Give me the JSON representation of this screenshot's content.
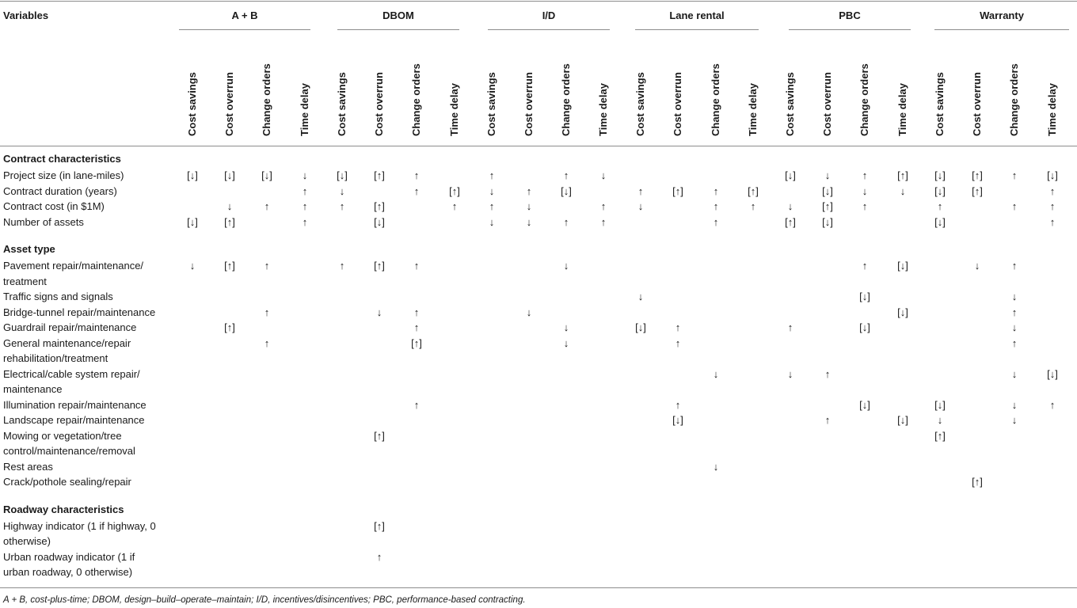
{
  "table": {
    "variables_header": "Variables",
    "groups": [
      "A + B",
      "DBOM",
      "I/D",
      "Lane rental",
      "PBC",
      "Warranty"
    ],
    "subheaders": [
      "Cost savings",
      "Cost overrun",
      "Change orders",
      "Time delay"
    ],
    "sections": [
      {
        "title": "Contract characteristics",
        "rows": [
          {
            "label": [
              "Project size (in lane-miles)"
            ],
            "cells": [
              "[↓]",
              "[↓]",
              "[↓]",
              "↓",
              "[↓]",
              "[↑]",
              "↑",
              "",
              "↑",
              "",
              "↑",
              "↓",
              "",
              "",
              "",
              "",
              "[↓]",
              "↓",
              "↑",
              "[↑]",
              "[↓]",
              "[↑]",
              "↑",
              "[↓]"
            ]
          },
          {
            "label": [
              "Contract duration (years)"
            ],
            "cells": [
              "",
              "",
              "",
              "↑",
              "↓",
              "",
              "↑",
              "[↑]",
              "↓",
              "↑",
              "[↓]",
              "",
              "↑",
              "[↑]",
              "↑",
              "[↑]",
              "",
              "[↓]",
              "↓",
              "↓",
              "[↓]",
              "[↑]",
              "",
              "↑"
            ]
          },
          {
            "label": [
              "Contract cost (in $1M)"
            ],
            "cells": [
              "",
              "↓",
              "↑",
              "↑",
              "↑",
              "[↑]",
              "",
              "↑",
              "↑",
              "↓",
              "",
              "↑",
              "↓",
              "",
              "↑",
              "↑",
              "↓",
              "[↑]",
              "↑",
              "",
              "↑",
              "",
              "↑",
              "↑"
            ]
          },
          {
            "label": [
              "Number of assets"
            ],
            "cells": [
              "[↓]",
              "[↑]",
              "",
              "↑",
              "",
              "[↓]",
              "",
              "",
              "↓",
              "↓",
              "↑",
              "↑",
              "",
              "",
              "↑",
              "",
              "[↑]",
              "[↓]",
              "",
              "",
              "[↓]",
              "",
              "",
              "↑"
            ]
          }
        ]
      },
      {
        "title": "Asset type",
        "rows": [
          {
            "label": [
              "Pavement repair/maintenance/",
              "treatment"
            ],
            "cells": [
              "↓",
              "[↑]",
              "↑",
              "",
              "↑",
              "[↑]",
              "↑",
              "",
              "",
              "",
              "↓",
              "",
              "",
              "",
              "",
              "",
              "",
              "",
              "↑",
              "[↓]",
              "",
              "↓",
              "↑",
              ""
            ]
          },
          {
            "label": [
              "Traffic signs and signals"
            ],
            "cells": [
              "",
              "",
              "",
              "",
              "",
              "",
              "",
              "",
              "",
              "",
              "",
              "",
              "↓",
              "",
              "",
              "",
              "",
              "",
              "[↓]",
              "",
              "",
              "",
              "↓",
              ""
            ]
          },
          {
            "label": [
              "Bridge-tunnel repair/maintenance"
            ],
            "cells": [
              "",
              "",
              "↑",
              "",
              "",
              "↓",
              "↑",
              "",
              "",
              "↓",
              "",
              "",
              "",
              "",
              "",
              "",
              "",
              "",
              "",
              "[↓]",
              "",
              "",
              "↑",
              ""
            ]
          },
          {
            "label": [
              "Guardrail repair/maintenance"
            ],
            "cells": [
              "",
              "[↑]",
              "",
              "",
              "",
              "",
              "↑",
              "",
              "",
              "",
              "↓",
              "",
              "[↓]",
              "↑",
              "",
              "",
              "↑",
              "",
              "[↓]",
              "",
              "",
              "",
              "↓",
              ""
            ]
          },
          {
            "label": [
              "General maintenance/repair",
              "rehabilitation/treatment"
            ],
            "cells": [
              "",
              "",
              "↑",
              "",
              "",
              "",
              "[↑]",
              "",
              "",
              "",
              "↓",
              "",
              "",
              "↑",
              "",
              "",
              "",
              "",
              "",
              "",
              "",
              "",
              "↑",
              ""
            ]
          },
          {
            "label": [
              "Electrical/cable system repair/",
              "maintenance"
            ],
            "cells": [
              "",
              "",
              "",
              "",
              "",
              "",
              "",
              "",
              "",
              "",
              "",
              "",
              "",
              "",
              "↓",
              "",
              "↓",
              "↑",
              "",
              "",
              "",
              "",
              "↓",
              "[↓]"
            ]
          },
          {
            "label": [
              "Illumination repair/maintenance"
            ],
            "cells": [
              "",
              "",
              "",
              "",
              "",
              "",
              "↑",
              "",
              "",
              "",
              "",
              "",
              "",
              "↑",
              "",
              "",
              "",
              "",
              "[↓]",
              "",
              "[↓]",
              "",
              "↓",
              "↑"
            ]
          },
          {
            "label": [
              "Landscape repair/maintenance"
            ],
            "cells": [
              "",
              "",
              "",
              "",
              "",
              "",
              "",
              "",
              "",
              "",
              "",
              "",
              "",
              "[↓]",
              "",
              "",
              "",
              "↑",
              "",
              "[↓]",
              "↓",
              "",
              "↓",
              ""
            ]
          },
          {
            "label": [
              "Mowing or vegetation/tree",
              "control/maintenance/removal"
            ],
            "cells": [
              "",
              "",
              "",
              "",
              "",
              "[↑]",
              "",
              "",
              "",
              "",
              "",
              "",
              "",
              "",
              "",
              "",
              "",
              "",
              "",
              "",
              "[↑]",
              "",
              "",
              ""
            ]
          },
          {
            "label": [
              "Rest areas"
            ],
            "cells": [
              "",
              "",
              "",
              "",
              "",
              "",
              "",
              "",
              "",
              "",
              "",
              "",
              "",
              "",
              "↓",
              "",
              "",
              "",
              "",
              "",
              "",
              "",
              "",
              ""
            ]
          },
          {
            "label": [
              "Crack/pothole sealing/repair"
            ],
            "cells": [
              "",
              "",
              "",
              "",
              "",
              "",
              "",
              "",
              "",
              "",
              "",
              "",
              "",
              "",
              "",
              "",
              "",
              "",
              "",
              "",
              "",
              "[↑]",
              "",
              ""
            ]
          }
        ]
      },
      {
        "title": "Roadway characteristics",
        "rows": [
          {
            "label": [
              "Highway indicator (1 if highway, 0",
              "otherwise)"
            ],
            "cells": [
              "",
              "",
              "",
              "",
              "",
              "[↑]",
              "",
              "",
              "",
              "",
              "",
              "",
              "",
              "",
              "",
              "",
              "",
              "",
              "",
              "",
              "",
              "",
              "",
              ""
            ]
          },
          {
            "label": [
              "Urban roadway indicator (1 if",
              "urban roadway, 0 otherwise)"
            ],
            "cells": [
              "",
              "",
              "",
              "",
              "",
              "↑",
              "",
              "",
              "",
              "",
              "",
              "",
              "",
              "",
              "",
              "",
              "",
              "",
              "",
              "",
              "",
              "",
              "",
              ""
            ]
          }
        ]
      }
    ]
  },
  "footnote": "A + B, cost-plus-time; DBOM, design–build–operate–maintain; I/D, incentives/disincentives; PBC, performance-based contracting."
}
